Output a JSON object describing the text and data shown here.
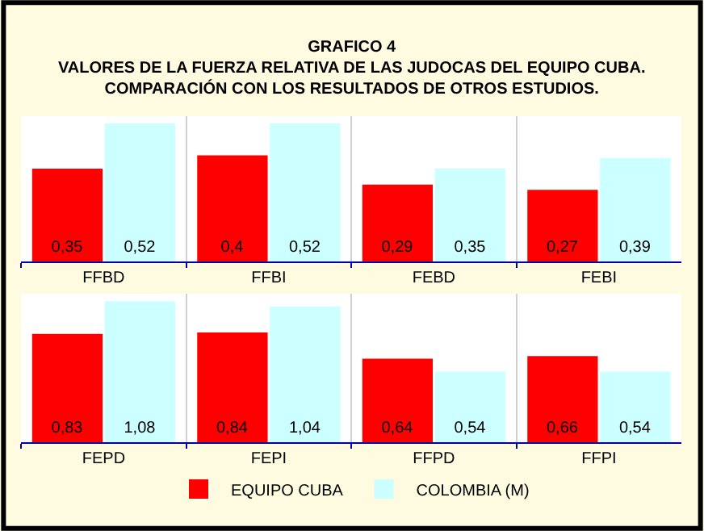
{
  "chart_data": [
    {
      "type": "bar",
      "title": "GRAFICO 4",
      "subtitle": "VALORES DE LA FUERZA RELATIVA DE LAS JUDOCAS DEL EQUIPO CUBA.\nCOMPARACIÓN CON LOS RESULTADOS DE OTROS ESTUDIOS.",
      "categories": [
        "FFBD",
        "FFBI",
        "FEBD",
        "FEBI"
      ],
      "grid": "x",
      "series": [
        {
          "color": "#ff0000",
          "values": [
            0.35,
            0.4,
            0.29,
            0.27
          ],
          "value_labels": [
            "0,35",
            "0,4",
            "0,29",
            "0,27"
          ]
        },
        {
          "color": "#ccffff",
          "values": [
            0.52,
            0.52,
            0.35,
            0.39
          ],
          "value_labels": [
            "0,52",
            "0,52",
            "0,35",
            "0,39"
          ]
        }
      ]
    },
    {
      "type": "bar",
      "categories": [
        "FEPD",
        "FEPI",
        "FFPD",
        "FFPI"
      ],
      "grid": "x",
      "legend": "bottom",
      "series": [
        {
          "name": "EQUIPO CUBA",
          "color": "#ff0000",
          "values": [
            0.83,
            0.84,
            0.64,
            0.66
          ],
          "value_labels": [
            "0,83",
            "0,84",
            "0,64",
            "0,66"
          ]
        },
        {
          "name": "COLOMBIA (M)",
          "color": "#ccffff",
          "values": [
            1.08,
            1.04,
            0.54,
            0.54
          ],
          "value_labels": [
            "1,08",
            "1,04",
            "0,54",
            "0,54"
          ]
        }
      ]
    }
  ]
}
